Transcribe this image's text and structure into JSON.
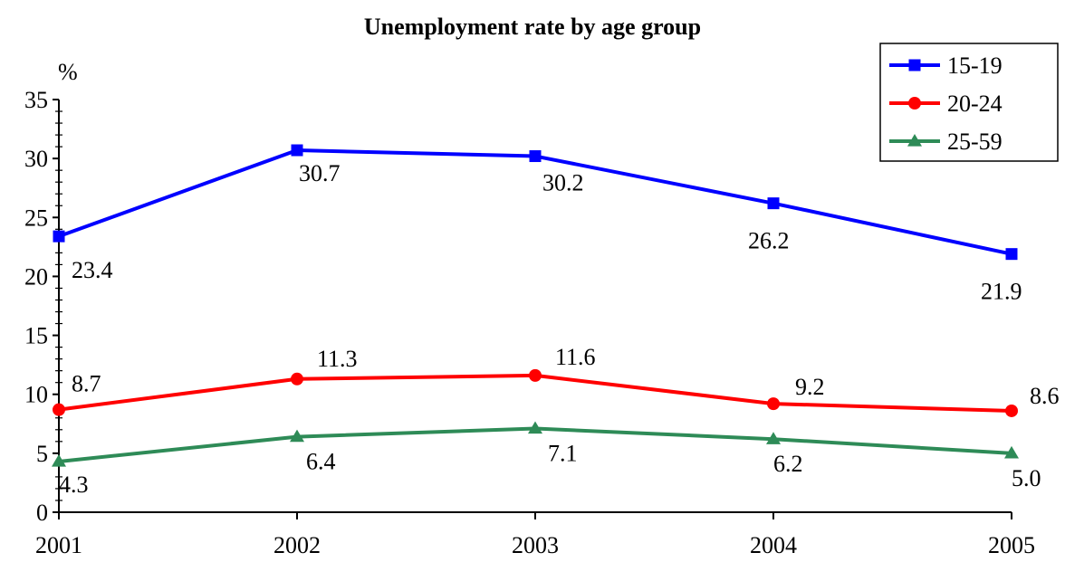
{
  "chart_data": {
    "type": "line",
    "title": "Unemployment rate by age group",
    "ylabel": "%",
    "xlabel": "",
    "categories": [
      "2001",
      "2002",
      "2003",
      "2004",
      "2005"
    ],
    "ylim": [
      0,
      35
    ],
    "yticks": [
      0,
      5,
      10,
      15,
      20,
      25,
      30,
      35
    ],
    "grid": false,
    "legend_position": "top-right",
    "series": [
      {
        "name": "15-19",
        "color": "#0000ff",
        "marker": "square",
        "values": [
          23.4,
          30.7,
          30.2,
          26.2,
          21.9
        ],
        "labels": [
          "23.4",
          "30.7",
          "30.2",
          "26.2",
          "21.9"
        ]
      },
      {
        "name": "20-24",
        "color": "#ff0000",
        "marker": "circle",
        "values": [
          8.7,
          11.3,
          11.6,
          9.2,
          8.6
        ],
        "labels": [
          "8.7",
          "11.3",
          "11.6",
          "9.2",
          "8.6"
        ]
      },
      {
        "name": "25-59",
        "color": "#2e8b57",
        "marker": "triangle",
        "values": [
          4.3,
          6.4,
          7.1,
          6.2,
          5.0
        ],
        "labels": [
          "4.3",
          "6.4",
          "7.1",
          "6.2",
          "5.0"
        ]
      }
    ]
  }
}
